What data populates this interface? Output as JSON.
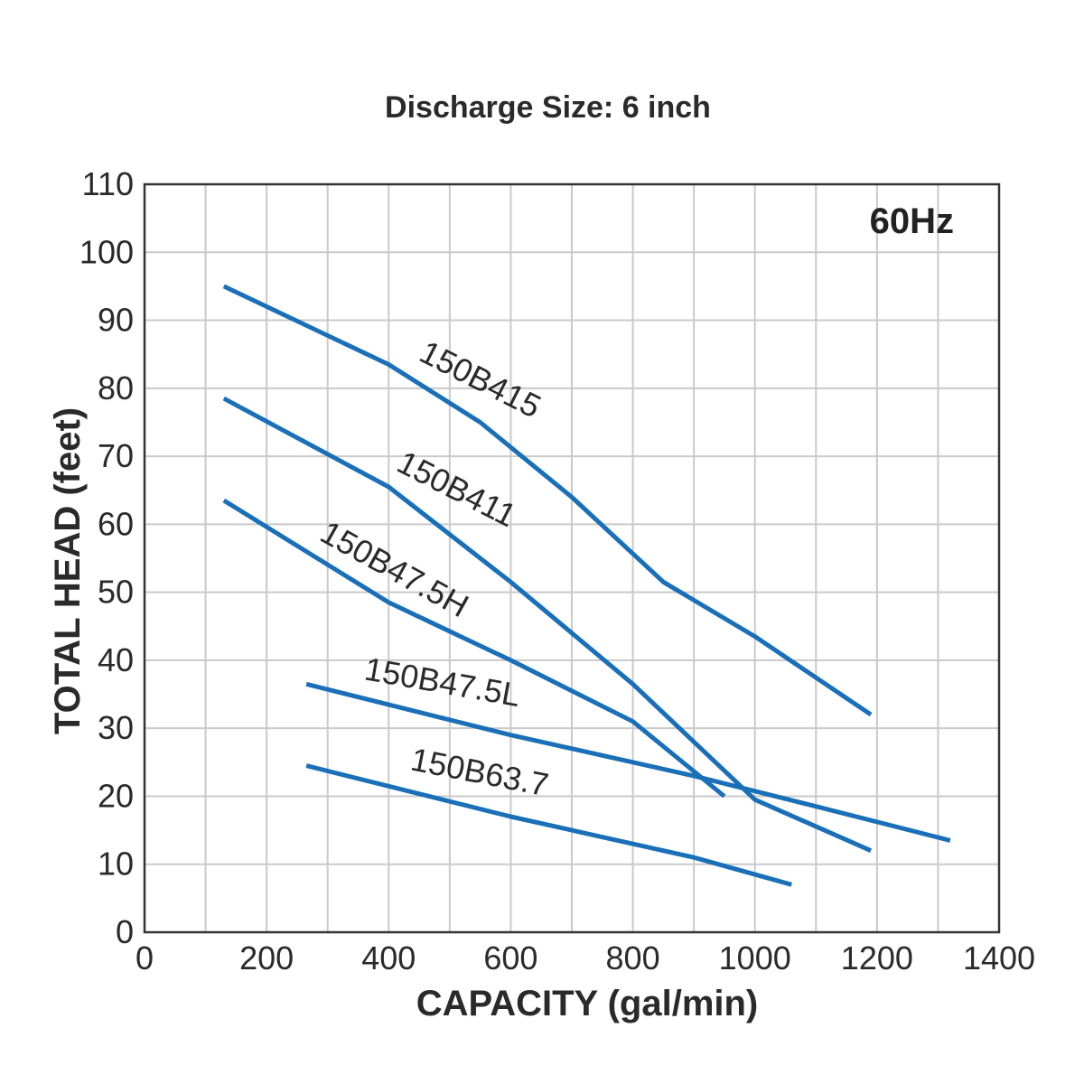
{
  "chart_data": {
    "type": "line",
    "title": "Discharge Size: 6 inch",
    "annotation": "60Hz",
    "xlabel": "CAPACITY (gal/min)",
    "ylabel": "TOTAL HEAD (feet)",
    "xlim": [
      0,
      1400
    ],
    "ylim": [
      0,
      110
    ],
    "x_ticks": [
      0,
      200,
      400,
      600,
      800,
      1000,
      1200,
      1400
    ],
    "y_ticks": [
      0,
      10,
      20,
      30,
      40,
      50,
      60,
      70,
      80,
      90,
      100,
      110
    ],
    "x_grid_step": 100,
    "y_grid_step": 10,
    "grid": true,
    "line_color": "#1a70b8",
    "series": [
      {
        "name": "150B415",
        "x": [
          130,
          400,
          550,
          700,
          850,
          1000,
          1190
        ],
        "y": [
          95,
          83.5,
          75,
          64,
          51.5,
          43.5,
          32
        ]
      },
      {
        "name": "150B411",
        "x": [
          130,
          400,
          600,
          800,
          1000,
          1190
        ],
        "y": [
          78.5,
          65.5,
          51.5,
          36.5,
          19.5,
          12
        ]
      },
      {
        "name": "150B47.5H",
        "x": [
          130,
          400,
          600,
          800,
          950
        ],
        "y": [
          63.5,
          48.5,
          40,
          31,
          20
        ]
      },
      {
        "name": "150B47.5L",
        "x": [
          265,
          600,
          900,
          1100,
          1320
        ],
        "y": [
          36.5,
          29,
          23,
          18.5,
          13.5
        ]
      },
      {
        "name": "150B63.7",
        "x": [
          265,
          600,
          900,
          1060
        ],
        "y": [
          24.5,
          17,
          11,
          7
        ]
      }
    ]
  }
}
